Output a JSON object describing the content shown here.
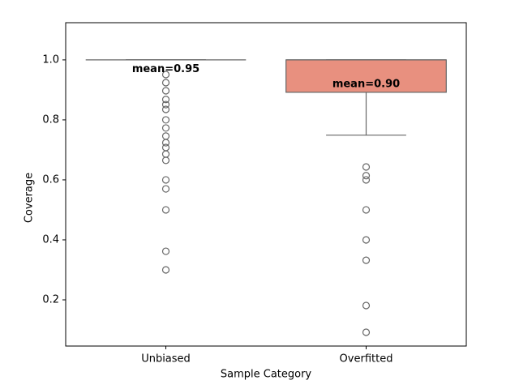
{
  "chart_data": {
    "type": "box",
    "x_label": "Sample Category",
    "y_label": "Coverage",
    "categories": [
      "Unbiased",
      "Overfitted"
    ],
    "colors": [
      "#e0e0e0",
      "#e8907f"
    ],
    "boxes": [
      {
        "q1": 1.0,
        "median": 1.0,
        "q3": 1.0,
        "whislo": 1.0,
        "whishi": 1.0,
        "fliers": [
          0.951,
          0.924,
          0.897,
          0.868,
          0.851,
          0.835,
          0.8,
          0.773,
          0.746,
          0.724,
          0.708,
          0.686,
          0.665,
          0.6,
          0.57,
          0.5,
          0.362,
          0.3
        ]
      },
      {
        "q1": 0.892,
        "median": 1.0,
        "q3": 1.0,
        "whislo": 0.749,
        "whishi": 1.0,
        "fliers": [
          0.643,
          0.614,
          0.6,
          0.5,
          0.4,
          0.332,
          0.181,
          0.092
        ]
      }
    ],
    "means": [
      0.95,
      0.9
    ],
    "mean_labels": [
      "mean=0.95",
      "mean=0.90"
    ],
    "ylim": [
      0.046,
      1.124
    ],
    "yticks": [
      0.2,
      0.4,
      0.6,
      0.8,
      {
        "value": 1,
        "label": "1.0"
      }
    ]
  }
}
